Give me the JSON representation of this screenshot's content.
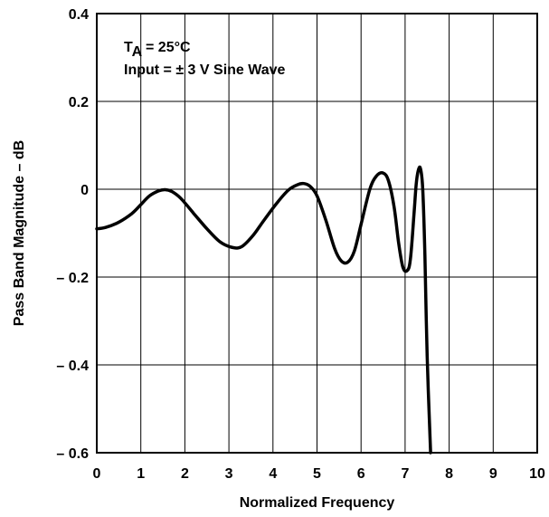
{
  "chart_data": {
    "type": "line",
    "title": "",
    "xlabel": "Normalized Frequency",
    "ylabel": "Pass Band Magnitude – dB",
    "xlim": [
      0,
      10
    ],
    "ylim": [
      -0.6,
      0.4
    ],
    "grid": true,
    "x_ticks": [
      "0",
      "1",
      "2",
      "3",
      "4",
      "5",
      "6",
      "7",
      "8",
      "9",
      "10"
    ],
    "y_ticks": [
      "0.4",
      "0.2",
      "0",
      "– 0.2",
      "– 0.4",
      "– 0.6"
    ],
    "annotations": {
      "line1_main": "T",
      "line1_sub": "A",
      "line1_rest": " = 25°C",
      "line2": "Input = ± 3 V Sine Wave"
    },
    "series": [
      {
        "x": [
          0,
          0.2,
          0.5,
          0.8,
          1.0,
          1.2,
          1.4,
          1.55,
          1.7,
          1.9,
          2.2,
          2.5,
          2.8,
          3.1,
          3.3,
          3.55,
          3.8,
          4.1,
          4.35,
          4.55,
          4.7,
          4.85,
          5.0,
          5.2,
          5.4,
          5.55,
          5.7,
          5.85,
          6.0,
          6.2,
          6.35,
          6.5,
          6.62,
          6.75,
          6.85,
          6.95,
          7.05,
          7.12,
          7.2,
          7.25,
          7.3,
          7.35,
          7.4,
          7.45,
          7.5,
          7.58
        ],
        "y": [
          -0.09,
          -0.087,
          -0.075,
          -0.055,
          -0.035,
          -0.015,
          -0.004,
          -0.001,
          -0.005,
          -0.02,
          -0.055,
          -0.09,
          -0.12,
          -0.133,
          -0.13,
          -0.105,
          -0.07,
          -0.03,
          -0.002,
          0.01,
          0.013,
          0.006,
          -0.015,
          -0.07,
          -0.135,
          -0.163,
          -0.166,
          -0.14,
          -0.08,
          0.0,
          0.03,
          0.037,
          0.02,
          -0.04,
          -0.12,
          -0.178,
          -0.185,
          -0.16,
          -0.06,
          0.01,
          0.043,
          0.047,
          0.0,
          -0.15,
          -0.38,
          -0.6
        ]
      }
    ]
  }
}
